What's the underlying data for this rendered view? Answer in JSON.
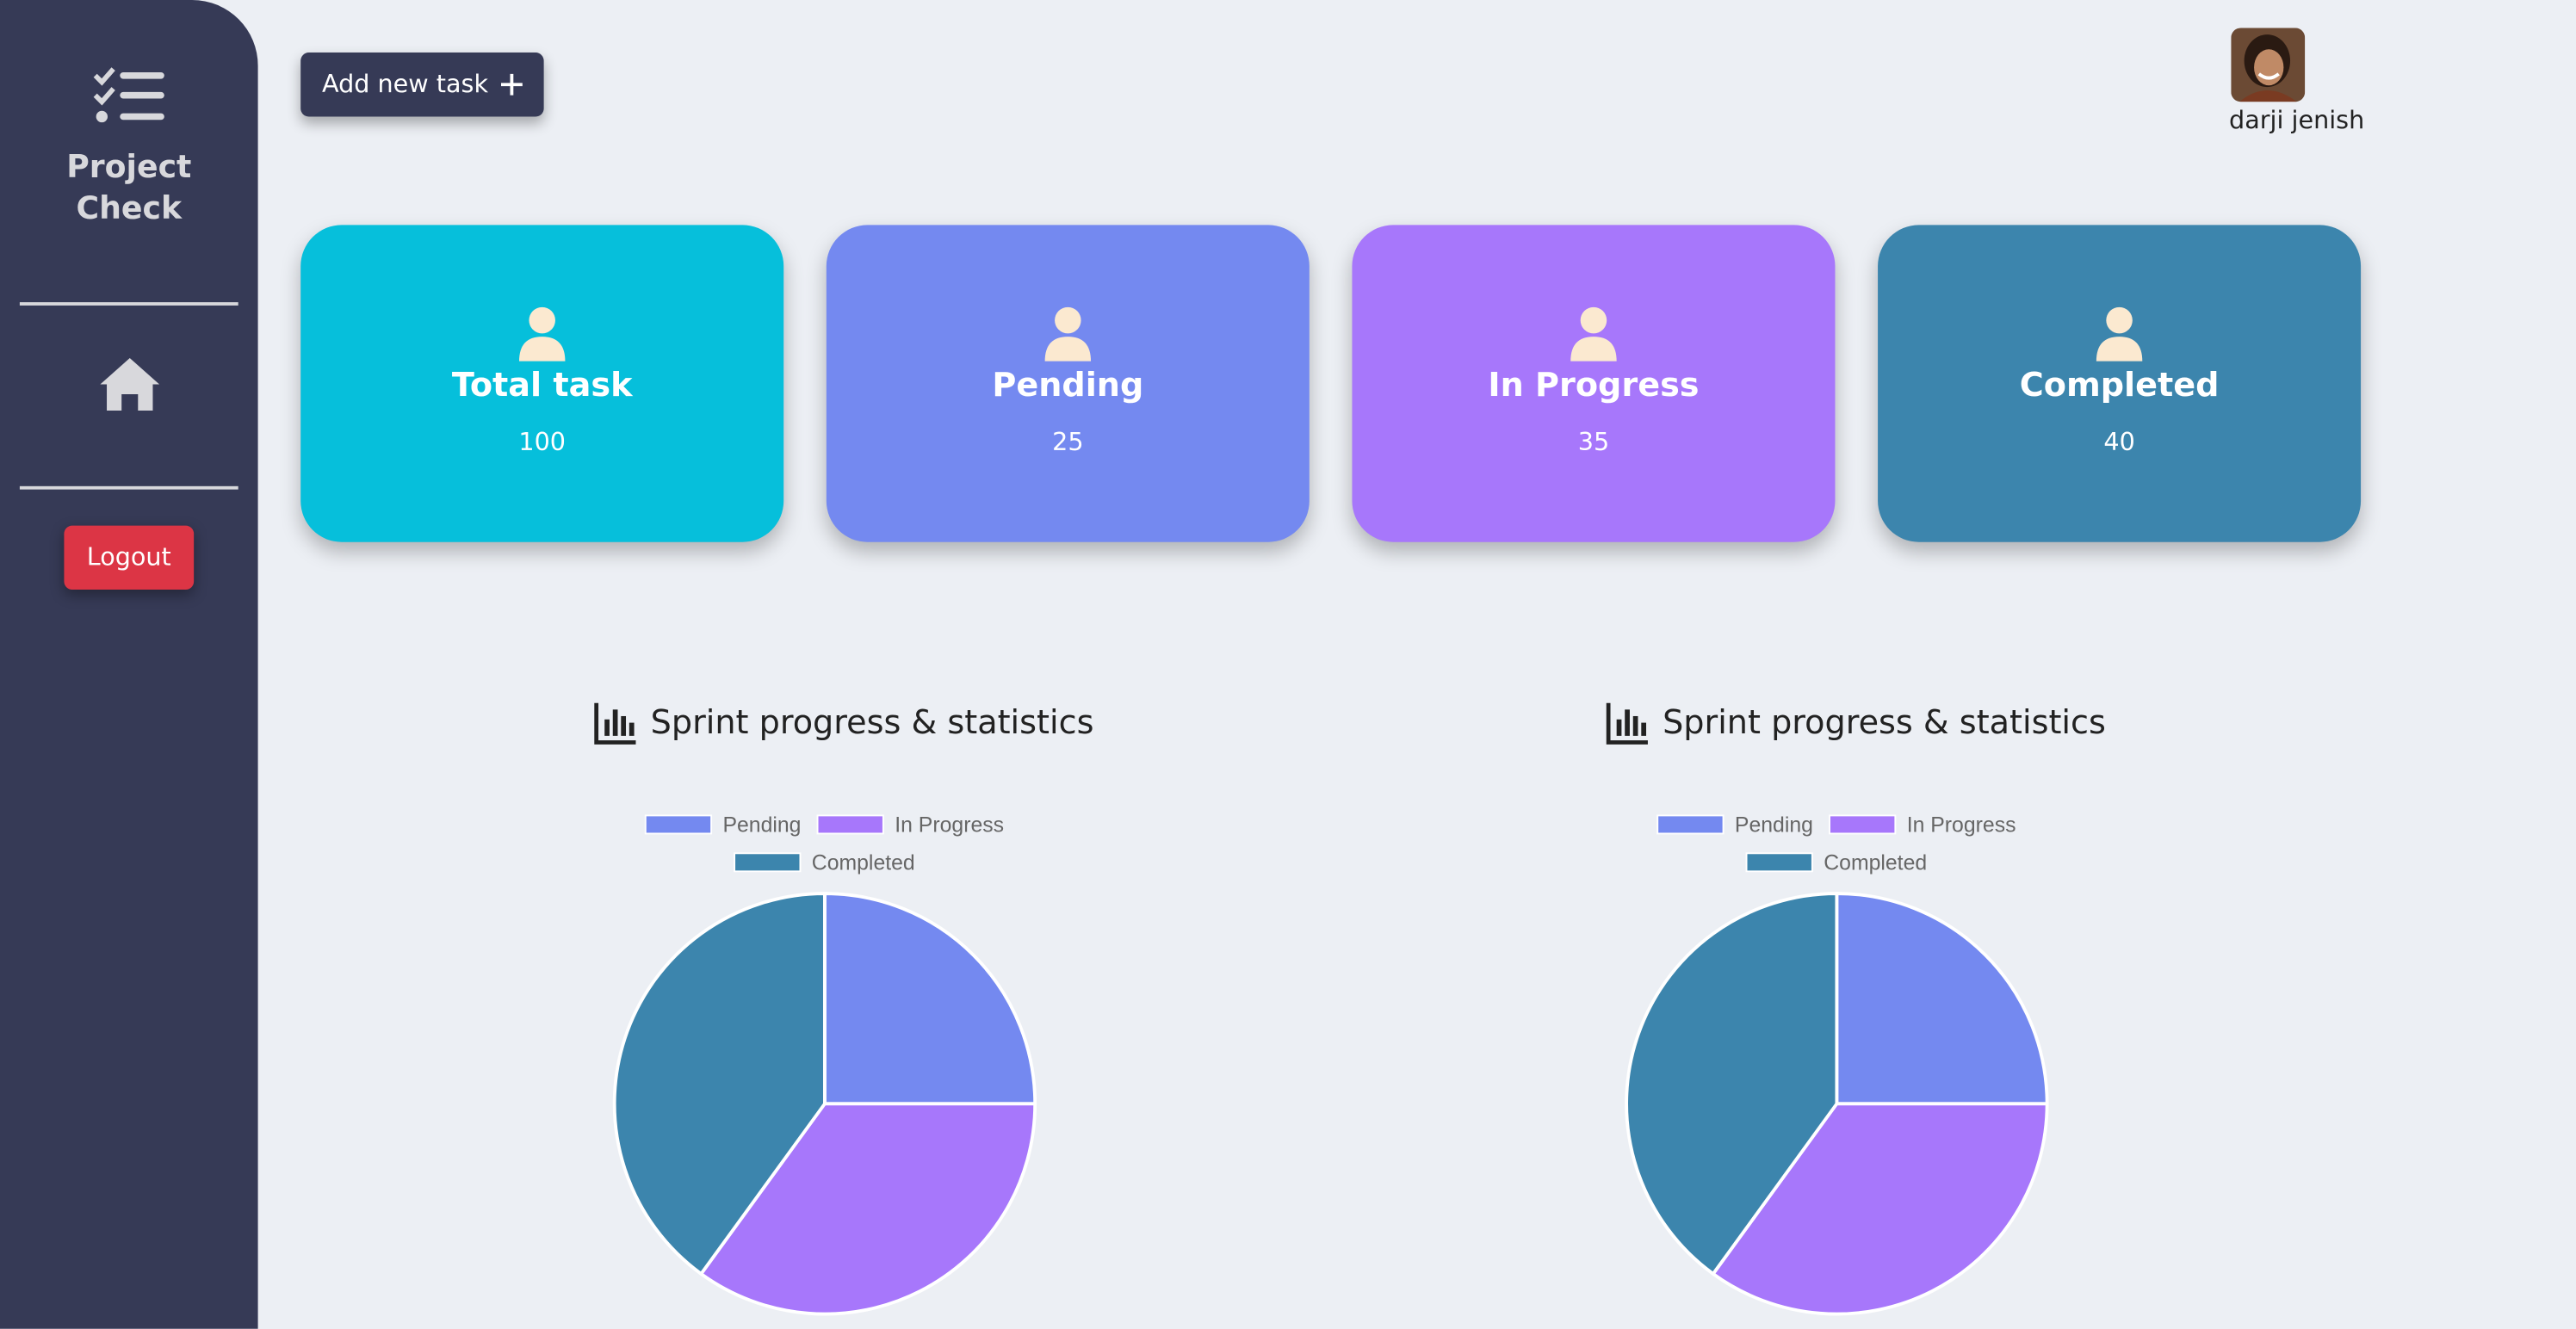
{
  "sidebar": {
    "brand": "Project\nCheck",
    "logout": "Logout"
  },
  "header": {
    "add_button": "Add new task",
    "user_name": "darji jenish"
  },
  "cards": [
    {
      "title": "Total task",
      "value": 100
    },
    {
      "title": "Pending",
      "value": 25
    },
    {
      "title": "In Progress",
      "value": 35
    },
    {
      "title": "Completed",
      "value": 40
    }
  ],
  "chart_data": [
    {
      "type": "pie",
      "title": "Sprint progress & statistics",
      "categories": [
        "Pending",
        "In Progress",
        "Completed"
      ],
      "values": [
        25,
        35,
        40
      ],
      "colors": [
        "#7489f0",
        "#a777fb",
        "#3c85ad"
      ]
    },
    {
      "type": "pie",
      "title": "Sprint progress & statistics",
      "categories": [
        "Pending",
        "In Progress",
        "Completed"
      ],
      "values": [
        25,
        35,
        40
      ],
      "colors": [
        "#7489f0",
        "#a777fb",
        "#3c85ad"
      ]
    }
  ]
}
